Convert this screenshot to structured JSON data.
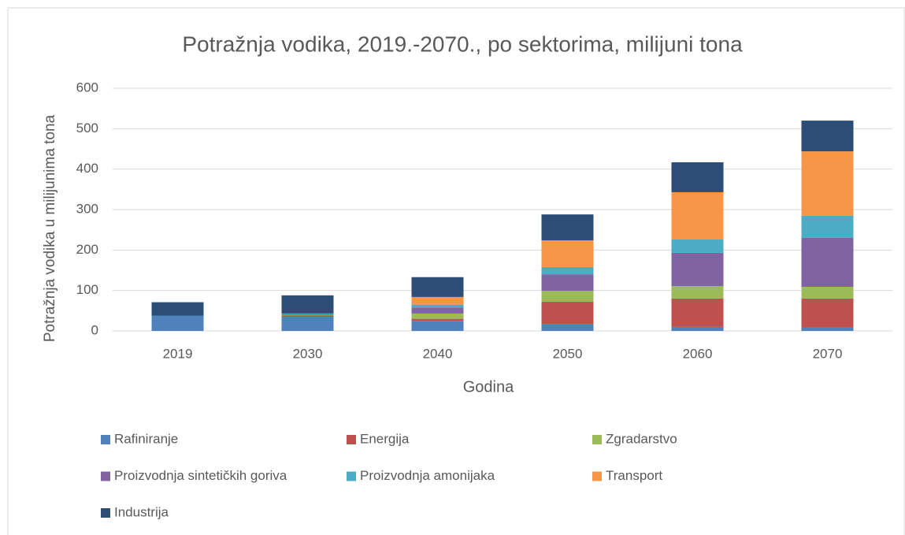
{
  "chart_data": {
    "type": "stacked_bar",
    "title": "Potražnja vodika, 2019.-2070., po sektorima, milijuni tona",
    "x_label": "Godina",
    "y_label": "Potražnja vodika u milijunima tona",
    "categories": [
      "2019",
      "2030",
      "2040",
      "2050",
      "2060",
      "2070"
    ],
    "series": [
      {
        "name": "Rafiniranje",
        "color": "#4f81bd",
        "values": [
          38,
          35,
          25,
          16,
          10,
          8
        ]
      },
      {
        "name": "Energija",
        "color": "#c0504d",
        "values": [
          0,
          3,
          5,
          56,
          70,
          72
        ]
      },
      {
        "name": "Zgradarstvo",
        "color": "#9bbb59",
        "values": [
          0,
          1,
          13,
          27,
          31,
          29
        ]
      },
      {
        "name": "Proizvodnja sintetičkih goriva",
        "color": "#8064a2",
        "values": [
          0,
          2,
          15,
          41,
          82,
          121
        ]
      },
      {
        "name": "Proizvodnja amonijaka",
        "color": "#4bacc6",
        "values": [
          0,
          2,
          7,
          18,
          33,
          55
        ]
      },
      {
        "name": "Transport",
        "color": "#f79646",
        "values": [
          0,
          0,
          19,
          66,
          117,
          159
        ]
      },
      {
        "name": "Industrija",
        "color": "#2c4d75",
        "values": [
          33,
          45,
          49,
          64,
          74,
          76
        ]
      }
    ],
    "ylim": [
      0,
      600
    ],
    "yticks": [
      0,
      100,
      200,
      300,
      400,
      500,
      600
    ],
    "grid": true,
    "legend": "bottom"
  }
}
